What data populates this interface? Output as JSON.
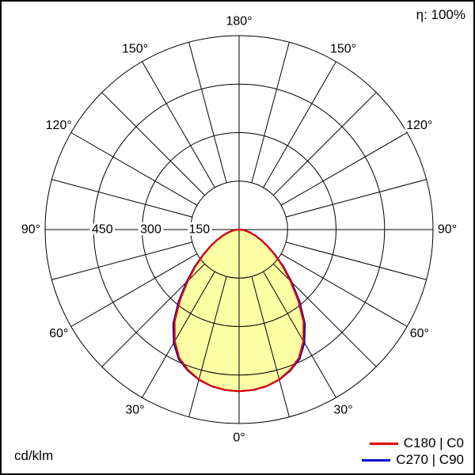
{
  "frame": {
    "efficiency_label": "η: 100%",
    "unit_label": "cd/klm"
  },
  "legend": {
    "items": [
      {
        "label": "C180 | C0",
        "color": "#e00000"
      },
      {
        "label": "C270 | C90",
        "color": "#0000cc"
      }
    ]
  },
  "chart_data": {
    "type": "line",
    "projection": "polar-photometric",
    "title": "",
    "unit_label": "cd/klm",
    "efficiency_label": "η: 100%",
    "angle_tick_labels_deg": [
      0,
      30,
      60,
      90,
      120,
      150,
      180
    ],
    "angle_label_suffix": "°",
    "angle_grid_step_deg": 15,
    "radial_tick_values": [
      150,
      300,
      450
    ],
    "radial_axis_max": 600,
    "grid": true,
    "legend_position": "bottom-right",
    "fill_color": "#ffffa6",
    "grid_color": "#000000",
    "series": [
      {
        "name": "C180 | C0",
        "color": "#e00000",
        "symmetric": true,
        "gamma_deg": [
          0,
          5,
          10,
          15,
          20,
          25,
          30,
          35,
          40,
          45,
          50,
          55,
          60,
          65,
          70,
          75,
          80,
          85,
          90
        ],
        "values_cd_per_klm": [
          500,
          498,
          492,
          480,
          462,
          438,
          398,
          348,
          284,
          224,
          176,
          134,
          100,
          73,
          52,
          35,
          22,
          11,
          4
        ]
      },
      {
        "name": "C270 | C90",
        "color": "#0000cc",
        "symmetric": true,
        "gamma_deg": [
          0,
          5,
          10,
          15,
          20,
          25,
          30,
          35,
          40,
          45,
          50,
          55,
          60,
          65,
          70,
          75,
          80,
          85,
          90
        ],
        "values_cd_per_klm": [
          500,
          498,
          492,
          481,
          464,
          442,
          404,
          355,
          291,
          230,
          180,
          136,
          101,
          74,
          52,
          35,
          22,
          11,
          4
        ]
      }
    ]
  }
}
